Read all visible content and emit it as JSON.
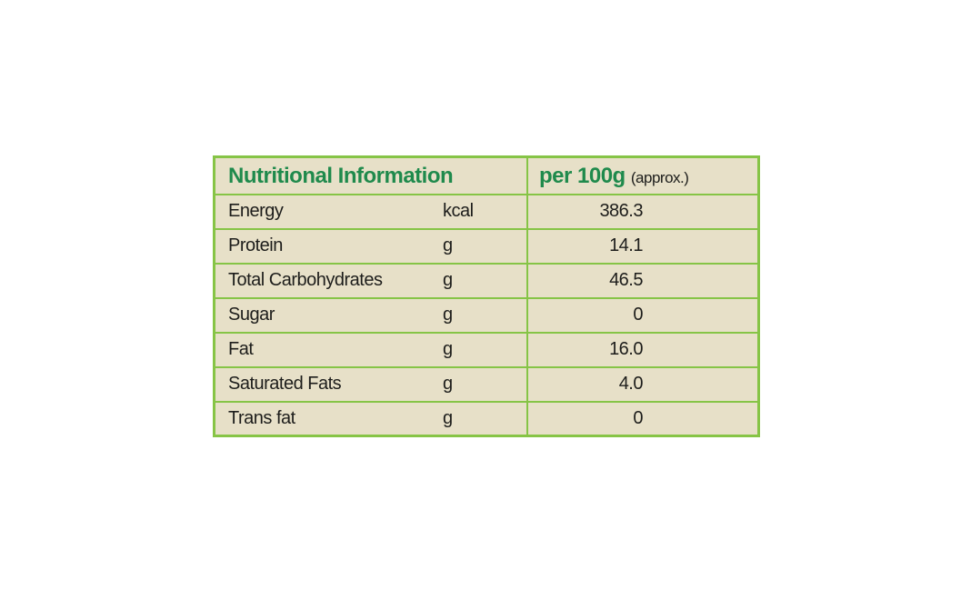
{
  "table": {
    "header": {
      "title": "Nutritional Information",
      "per": "per 100g",
      "note": "(approx.)"
    },
    "rows": [
      [
        "Energy",
        "kcal",
        "386.3"
      ],
      [
        "Protein",
        "g",
        "14.1"
      ],
      [
        "Total Carbohydrates",
        "g",
        "46.5"
      ],
      [
        "Sugar",
        "g",
        "0"
      ],
      [
        "Fat",
        "g",
        "16.0"
      ],
      [
        "Saturated Fats",
        "g",
        "4.0"
      ],
      [
        "Trans fat",
        "g",
        "0"
      ]
    ]
  }
}
